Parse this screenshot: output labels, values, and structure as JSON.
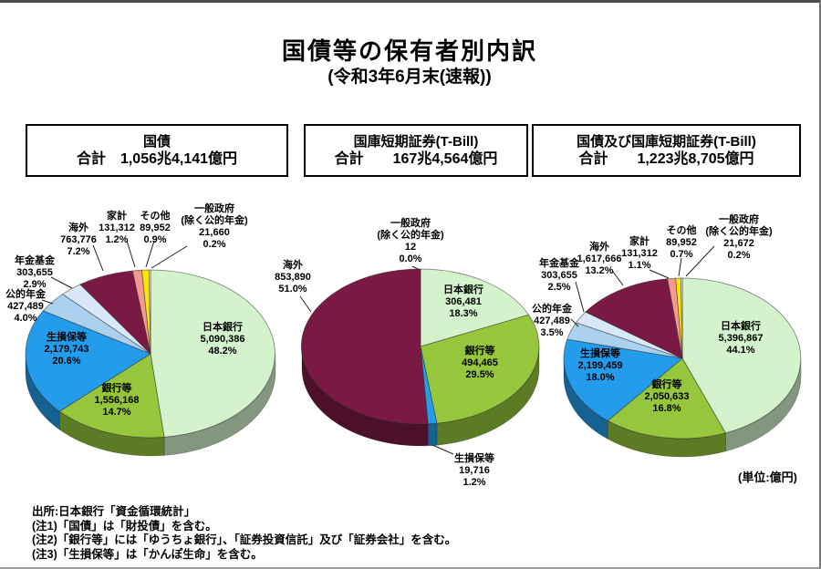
{
  "page": {
    "title": "国債等の保有者別内訳",
    "subtitle": "(令和3年6月末(速報))",
    "unit_note": "(単位:億円)",
    "source": "出所:日本銀行「資金循環統計」",
    "notes": [
      "(注1)「国債」は「財投債」を含む。",
      "(注2)「銀行等」には「ゆうちょ銀行」、「証券投資信託」及び「証券会社」を含む。",
      "(注3)「生損保等」は「かんぽ生命」を含む。"
    ]
  },
  "chart_data": [
    {
      "type": "pie",
      "title": "国債",
      "box": {
        "title": "国債",
        "total": "合計　1,056兆4,141億円"
      },
      "unit": "億円",
      "slices": [
        {
          "label": "日本銀行",
          "value": 5090386,
          "value_text": "5,090,386",
          "pct": 48.2,
          "pct_text": "48.2%",
          "color": "#d4f2cc"
        },
        {
          "label": "銀行等",
          "value": 1556168,
          "value_text": "1,556,168",
          "pct": 14.7,
          "pct_text": "14.7%",
          "color": "#95c63c"
        },
        {
          "label": "生損保等",
          "value": 2179743,
          "value_text": "2,179,743",
          "pct": 20.6,
          "pct_text": "20.6%",
          "color": "#229ceb"
        },
        {
          "label": "公的年金",
          "value": 427489,
          "value_text": "427,489",
          "pct": 4.0,
          "pct_text": "4.0%",
          "color": "#aad2f0"
        },
        {
          "label": "年金基金",
          "value": 303655,
          "value_text": "303,655",
          "pct": 2.9,
          "pct_text": "2.9%",
          "color": "#d8e8f8"
        },
        {
          "label": "海外",
          "value": 763776,
          "value_text": "763,776",
          "pct": 7.2,
          "pct_text": "7.2%",
          "color": "#7b1945"
        },
        {
          "label": "家計",
          "value": 131312,
          "value_text": "131,312",
          "pct": 1.2,
          "pct_text": "1.2%",
          "color": "#f29a90"
        },
        {
          "label": "その他",
          "value": 89952,
          "value_text": "89,952",
          "pct": 0.9,
          "pct_text": "0.9%",
          "color": "#ffe600"
        },
        {
          "label": "一般政府\n(除く公的年金)",
          "value": 21660,
          "value_text": "21,660",
          "pct": 0.2,
          "pct_text": "0.2%",
          "color": "#fdfdf2"
        }
      ]
    },
    {
      "type": "pie",
      "title": "国庫短期証券(T-Bill)",
      "box": {
        "title": "国庫短期証券(T-Bill)",
        "total": "合計　　167兆4,564億円"
      },
      "unit": "億円",
      "slices": [
        {
          "label": "日本銀行",
          "value": 306481,
          "value_text": "306,481",
          "pct": 18.3,
          "pct_text": "18.3%",
          "color": "#d4f2cc"
        },
        {
          "label": "銀行等",
          "value": 494465,
          "value_text": "494,465",
          "pct": 29.5,
          "pct_text": "29.5%",
          "color": "#95c63c"
        },
        {
          "label": "生損保等",
          "value": 19716,
          "value_text": "19,716",
          "pct": 1.2,
          "pct_text": "1.2%",
          "color": "#229ceb"
        },
        {
          "label": "海外",
          "value": 853890,
          "value_text": "853,890",
          "pct": 51.0,
          "pct_text": "51.0%",
          "color": "#7b1945"
        },
        {
          "label": "一般政府\n(除く公的年金)",
          "value": 12,
          "value_text": "12",
          "pct": 0.0,
          "pct_text": "0.0%",
          "color": "#fdfdf2"
        }
      ]
    },
    {
      "type": "pie",
      "title": "国債及び国庫短期証券(T-Bill)",
      "box": {
        "title": "国債及び国庫短期証券(T-Bill)",
        "total": "合計　　1,223兆8,705億円"
      },
      "unit": "億円",
      "slices": [
        {
          "label": "日本銀行",
          "value": 5396867,
          "value_text": "5,396,867",
          "pct": 44.1,
          "pct_text": "44.1%",
          "color": "#d4f2cc"
        },
        {
          "label": "銀行等",
          "value": 2050633,
          "value_text": "2,050,633",
          "pct": 16.8,
          "pct_text": "16.8%",
          "color": "#95c63c"
        },
        {
          "label": "生損保等",
          "value": 2199459,
          "value_text": "2,199,459",
          "pct": 18.0,
          "pct_text": "18.0%",
          "color": "#229ceb"
        },
        {
          "label": "公的年金",
          "value": 427489,
          "value_text": "427,489",
          "pct": 3.5,
          "pct_text": "3.5%",
          "color": "#aad2f0"
        },
        {
          "label": "年金基金",
          "value": 303655,
          "value_text": "303,655",
          "pct": 2.5,
          "pct_text": "2.5%",
          "color": "#d8e8f8"
        },
        {
          "label": "海外",
          "value": 1617666,
          "value_text": "1,617,666",
          "pct": 13.2,
          "pct_text": "13.2%",
          "color": "#7b1945"
        },
        {
          "label": "家計",
          "value": 131312,
          "value_text": "131,312",
          "pct": 1.1,
          "pct_text": "1.1%",
          "color": "#f29a90"
        },
        {
          "label": "その他",
          "value": 89952,
          "value_text": "89,952",
          "pct": 0.7,
          "pct_text": "0.7%",
          "color": "#ffe600"
        },
        {
          "label": "一般政府\n(除く公的年金)",
          "value": 21672,
          "value_text": "21,672",
          "pct": 0.2,
          "pct_text": "0.2%",
          "color": "#fdfdf2"
        }
      ]
    }
  ]
}
